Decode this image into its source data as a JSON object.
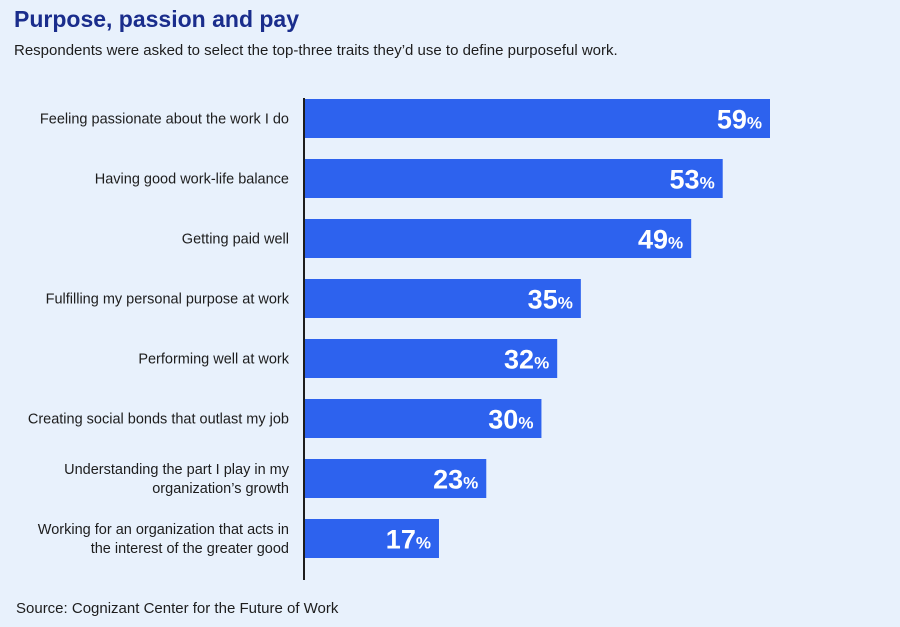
{
  "title": "Purpose, passion and pay",
  "subtitle": "Respondents were asked to select the top-three traits they’d use to define purposeful work.",
  "source": "Source: Cognizant Center for the Future of Work",
  "colors": {
    "bar": "#2d62ee",
    "axis": "#1d1d1d",
    "title": "#1a2d8c",
    "background": "#e8f1fc"
  },
  "chart_data": {
    "type": "bar",
    "orientation": "horizontal",
    "title": "Purpose, passion and pay",
    "subtitle": "Respondents were asked to select the top-three traits they’d use to define purposeful work.",
    "categories": [
      [
        "Feeling passionate about the work I do"
      ],
      [
        "Having good work-life balance"
      ],
      [
        "Getting paid well"
      ],
      [
        "Fulfilling my personal purpose at work"
      ],
      [
        "Performing well at work"
      ],
      [
        "Creating social bonds that outlast my job"
      ],
      [
        "Understanding the part I play in my",
        "organization’s growth"
      ],
      [
        "Working for an organization that acts in",
        "the interest of the greater good"
      ]
    ],
    "values": [
      59,
      53,
      49,
      35,
      32,
      30,
      23,
      17
    ],
    "value_suffix": "%",
    "xlim": [
      0,
      62
    ],
    "grid": false,
    "legend": "none"
  }
}
